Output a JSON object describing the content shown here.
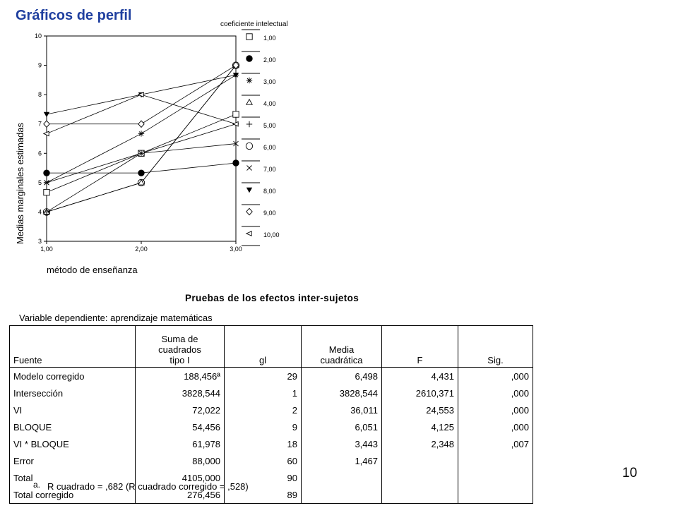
{
  "slide": {
    "title": "Gráficos de perfil",
    "page_number": "10"
  },
  "chart_data": {
    "type": "line",
    "title": "",
    "xlabel": "método de enseñanza",
    "ylabel": "Medias marginales estimadas",
    "legend_title": "coeficiente intelectual",
    "legend_position": "right",
    "x": [
      1,
      2,
      3
    ],
    "x_tick_labels": [
      "1,00",
      "2,00",
      "3,00"
    ],
    "ylim": [
      3,
      10
    ],
    "y_ticks": [
      3,
      4,
      5,
      6,
      7,
      8,
      9,
      10
    ],
    "series": [
      {
        "name": "1,00",
        "marker": "square-open",
        "values": [
          4.67,
          6.0,
          7.33
        ]
      },
      {
        "name": "2,00",
        "marker": "circle-filled",
        "values": [
          5.33,
          5.33,
          5.67
        ]
      },
      {
        "name": "3,00",
        "marker": "asterisk",
        "values": [
          5.0,
          6.67,
          8.67
        ]
      },
      {
        "name": "4,00",
        "marker": "triangle-open",
        "values": [
          4.0,
          5.0,
          9.0
        ]
      },
      {
        "name": "5,00",
        "marker": "plus",
        "values": [
          4.0,
          6.0,
          7.0
        ]
      },
      {
        "name": "6,00",
        "marker": "circle-open",
        "values": [
          4.0,
          5.0,
          9.0
        ]
      },
      {
        "name": "7,00",
        "marker": "x",
        "values": [
          5.0,
          6.0,
          6.33
        ]
      },
      {
        "name": "8,00",
        "marker": "triangle-down-filled",
        "values": [
          7.33,
          8.0,
          8.67
        ]
      },
      {
        "name": "9,00",
        "marker": "diamond-open",
        "values": [
          7.0,
          7.0,
          9.0
        ]
      },
      {
        "name": "10,00",
        "marker": "triangle-left-open",
        "values": [
          6.67,
          8.0,
          7.0
        ]
      }
    ]
  },
  "table": {
    "title": "Pruebas de los efectos inter-sujetos",
    "dependent_variable": "Variable dependiente: aprendizaje matemáticas",
    "headers": {
      "fuente": "Fuente",
      "suma": "Suma de cuadrados tipo I",
      "gl": "gl",
      "media": "Media cuadrática",
      "f": "F",
      "sig": "Sig."
    },
    "rows": [
      {
        "fuente": "Modelo corregido",
        "suma": "188,456ª",
        "gl": "29",
        "media": "6,498",
        "f": "4,431",
        "sig": ",000"
      },
      {
        "fuente": "Intersección",
        "suma": "3828,544",
        "gl": "1",
        "media": "3828,544",
        "f": "2610,371",
        "sig": ",000"
      },
      {
        "fuente": "VI",
        "suma": "72,022",
        "gl": "2",
        "media": "36,011",
        "f": "24,553",
        "sig": ",000"
      },
      {
        "fuente": "BLOQUE",
        "suma": "54,456",
        "gl": "9",
        "media": "6,051",
        "f": "4,125",
        "sig": ",000"
      },
      {
        "fuente": "VI * BLOQUE",
        "suma": "61,978",
        "gl": "18",
        "media": "3,443",
        "f": "2,348",
        "sig": ",007"
      },
      {
        "fuente": "Error",
        "suma": "88,000",
        "gl": "60",
        "media": "1,467",
        "f": "",
        "sig": ""
      },
      {
        "fuente": "Total",
        "suma": "4105,000",
        "gl": "90",
        "media": "",
        "f": "",
        "sig": ""
      },
      {
        "fuente": "Total corregido",
        "suma": "276,456",
        "gl": "89",
        "media": "",
        "f": "",
        "sig": ""
      }
    ],
    "footnote_marker": "a.",
    "footnote": "R cuadrado = ,682 (R cuadrado corregido = ,528)"
  }
}
